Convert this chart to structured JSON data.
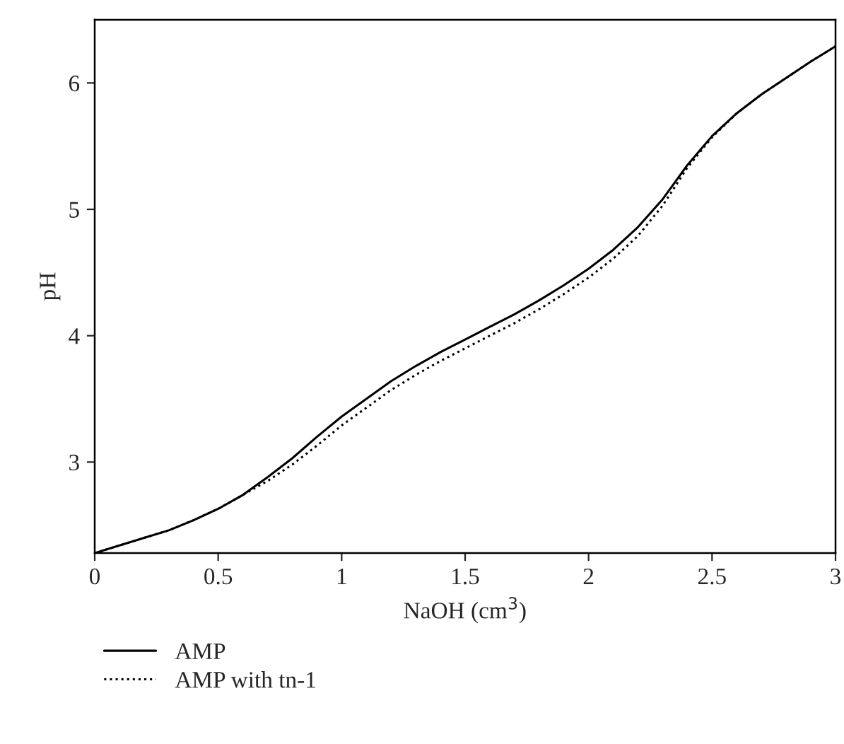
{
  "chart_data": {
    "type": "line",
    "xlabel": "NaOH (cm$^{3}$)",
    "ylabel": "pH",
    "x": [
      0,
      0.1,
      0.2,
      0.3,
      0.4,
      0.5,
      0.6,
      0.7,
      0.8,
      0.9,
      1.0,
      1.1,
      1.2,
      1.3,
      1.4,
      1.5,
      1.6,
      1.7,
      1.8,
      1.9,
      2.0,
      2.1,
      2.2,
      2.3,
      2.4,
      2.5,
      2.6,
      2.7,
      2.8,
      2.9,
      3.0
    ],
    "series": [
      {
        "name": "AMP",
        "color": "#000000",
        "line_style": "solid",
        "values": [
          2.28,
          2.34,
          2.4,
          2.46,
          2.54,
          2.63,
          2.74,
          2.88,
          3.03,
          3.2,
          3.36,
          3.5,
          3.64,
          3.76,
          3.87,
          3.97,
          4.07,
          4.17,
          4.28,
          4.4,
          4.53,
          4.68,
          4.86,
          5.08,
          5.35,
          5.58,
          5.76,
          5.91,
          6.04,
          6.17,
          6.29
        ]
      },
      {
        "name": "AMP with tn-1",
        "color": "#000000",
        "line_style": "dotted",
        "values": [
          2.28,
          2.34,
          2.4,
          2.46,
          2.54,
          2.63,
          2.74,
          2.85,
          2.98,
          3.13,
          3.29,
          3.43,
          3.57,
          3.69,
          3.8,
          3.9,
          4.0,
          4.1,
          4.21,
          4.33,
          4.46,
          4.61,
          4.79,
          5.03,
          5.33,
          5.57,
          5.76,
          5.91,
          6.04,
          6.17,
          6.29
        ]
      }
    ],
    "xlim": [
      0,
      3
    ],
    "xticks": [
      0,
      0.5,
      1,
      1.5,
      2,
      2.5,
      3
    ],
    "ylim": [
      2.28,
      6.5
    ],
    "yticks": [
      3,
      4,
      5,
      6
    ],
    "grid": false,
    "legend": "bottom left"
  }
}
